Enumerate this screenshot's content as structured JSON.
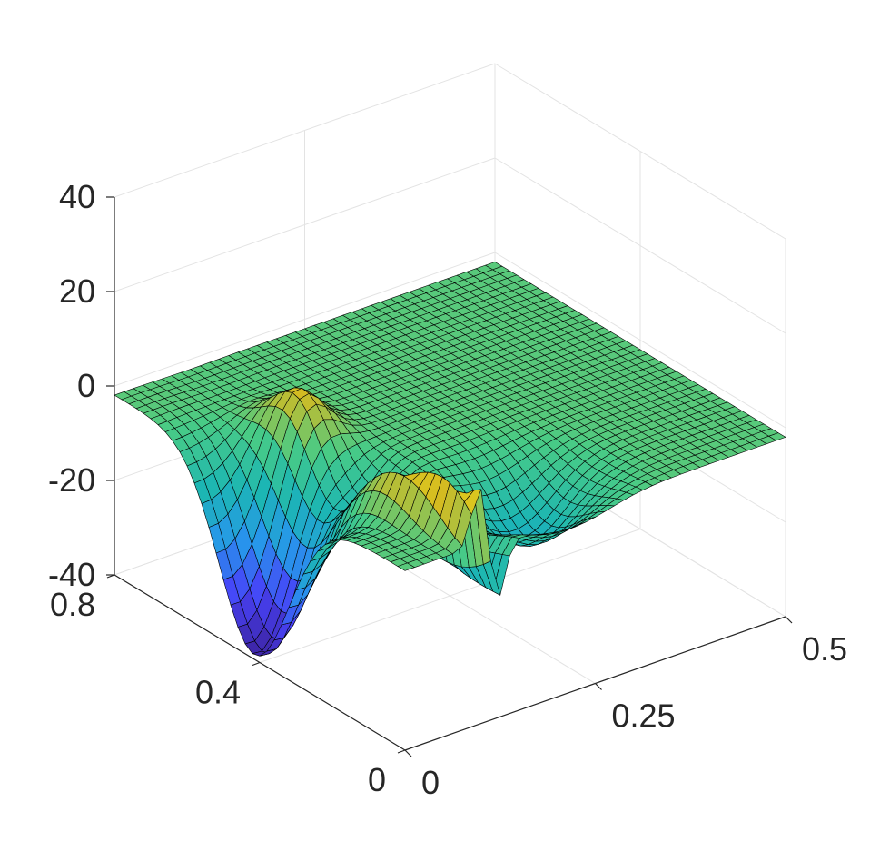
{
  "chart_data": {
    "type": "surface",
    "title": "",
    "xlabel": "",
    "ylabel": "",
    "zlabel": "",
    "x_axis": {
      "range": [
        0,
        0.5
      ],
      "ticks": [
        0,
        0.25,
        0.5
      ],
      "tick_labels": [
        "0",
        "0.25",
        "0.5"
      ]
    },
    "y_axis": {
      "range": [
        0,
        0.8
      ],
      "ticks": [
        0,
        0.4,
        0.8
      ],
      "tick_labels": [
        "0",
        "0.4",
        "0.8"
      ]
    },
    "z_axis": {
      "range": [
        -40,
        40
      ],
      "ticks": [
        -40,
        -20,
        0,
        20,
        40
      ],
      "tick_labels": [
        "-40",
        "-20",
        "0",
        "20",
        "40"
      ]
    },
    "grid": true,
    "box": false,
    "colormap": "parula",
    "colormap_stops": [
      "#3e26a8",
      "#4743f8",
      "#2797eb",
      "#1cb6b3",
      "#48cb86",
      "#d5bb21",
      "#f9fb15"
    ],
    "edge_color": "#000000",
    "background": "#ffffff",
    "mesh_size": [
      40,
      40
    ],
    "z_min": -39,
    "z_max": 15,
    "features": [
      {
        "feature": "minimum",
        "x": 0.02,
        "y": 0.42,
        "z": -39
      },
      {
        "feature": "maximum",
        "x": 0.1,
        "y": 0.5,
        "z": 15
      },
      {
        "feature": "fold",
        "x": 0.1,
        "y": 0.0,
        "z": -27
      },
      {
        "feature": "local minimum",
        "x": 0.22,
        "y": 0.13,
        "z": -13
      }
    ]
  }
}
